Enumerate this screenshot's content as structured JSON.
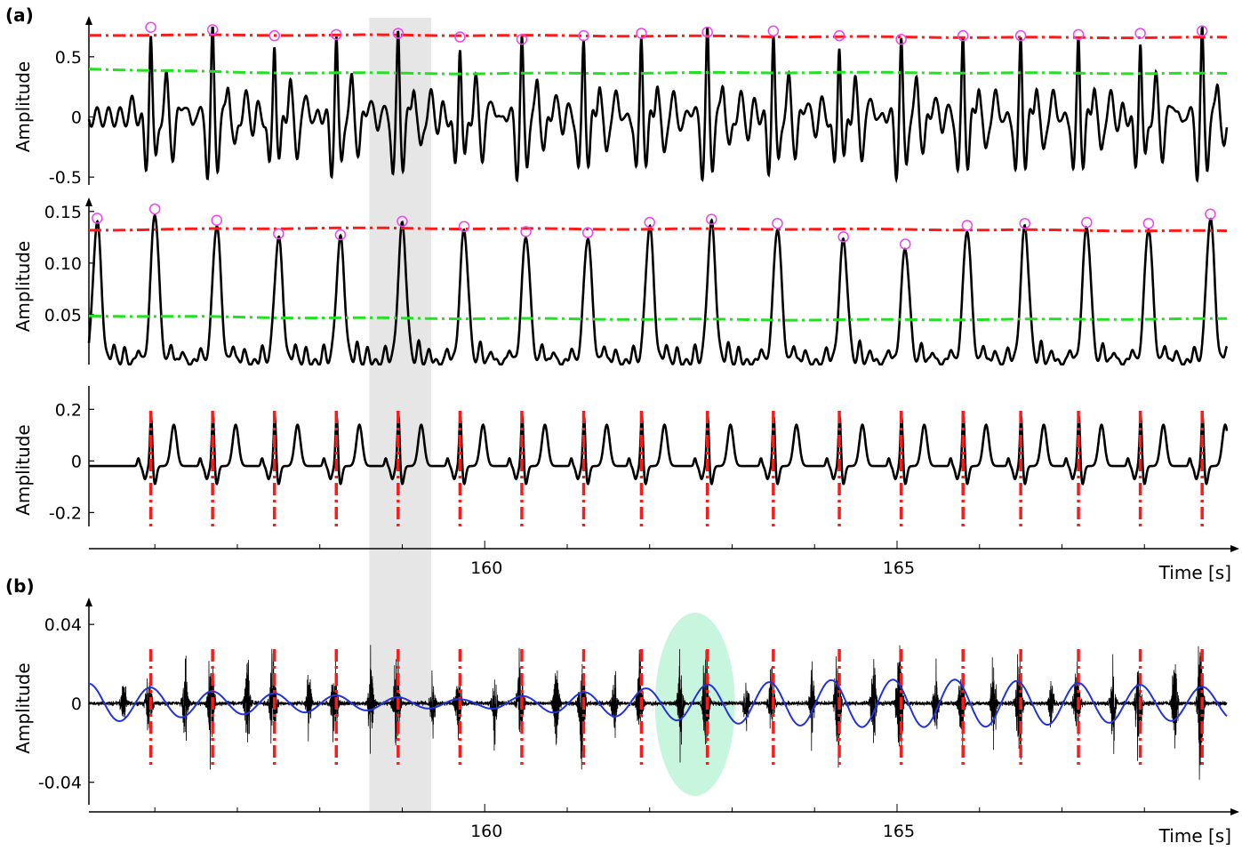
{
  "figure": {
    "panel_a_label": "(a)",
    "panel_b_label": "(b)"
  },
  "colors": {
    "signal": "#000000",
    "upper_threshold": "#ff1a1a",
    "lower_threshold": "#22e022",
    "peak_marker": "#ee44ee",
    "beat_marker": "#ff1a1a",
    "sinusoid": "#2233dd",
    "shaded_region": "#e6e6e6",
    "highlight_ellipse": "#c8f5de"
  },
  "chart_data": [
    {
      "type": "line",
      "panel": "a1",
      "ylabel": "Amplitude",
      "ylim": [
        -0.58,
        0.75
      ],
      "yticks": [
        0.5,
        0,
        -0.5
      ],
      "ytick_labels": [
        "0.5",
        "0",
        "-0.5"
      ],
      "xlim": [
        155.2,
        169.0
      ],
      "series": [
        {
          "role": "upper_threshold",
          "style": "dash-dot",
          "x": [
            155.2,
            159.0,
            163.0,
            166.5,
            169.0
          ],
          "y": [
            0.68,
            0.68,
            0.67,
            0.66,
            0.66
          ]
        },
        {
          "role": "lower_threshold",
          "style": "dash-dot",
          "x": [
            155.2,
            157.0,
            160.0,
            164.0,
            169.0
          ],
          "y": [
            0.4,
            0.37,
            0.36,
            0.37,
            0.36
          ]
        }
      ],
      "peaks": {
        "x": [
          155.95,
          156.7,
          157.45,
          158.2,
          158.95,
          159.7,
          160.45,
          161.2,
          161.9,
          162.7,
          163.5,
          164.3,
          165.05,
          165.8,
          166.5,
          167.2,
          167.95,
          168.7
        ],
        "y": [
          0.73,
          0.71,
          0.66,
          0.67,
          0.68,
          0.65,
          0.63,
          0.66,
          0.68,
          0.69,
          0.7,
          0.66,
          0.63,
          0.66,
          0.66,
          0.67,
          0.68,
          0.7
        ]
      }
    },
    {
      "type": "line",
      "panel": "a2",
      "ylabel": "Amplitude",
      "ylim": [
        0.0,
        0.155
      ],
      "yticks": [
        0.15,
        0.1,
        0.05
      ],
      "ytick_labels": [
        "0.15",
        "0.10",
        "0.05"
      ],
      "xlim": [
        155.2,
        169.0
      ],
      "series": [
        {
          "role": "upper_threshold",
          "style": "dash-dot",
          "x": [
            155.2,
            158.0,
            161.0,
            164.0,
            169.0
          ],
          "y": [
            0.132,
            0.134,
            0.133,
            0.133,
            0.131
          ]
        },
        {
          "role": "lower_threshold",
          "style": "dash-dot",
          "x": [
            155.2,
            158.0,
            161.0,
            164.0,
            169.0
          ],
          "y": [
            0.049,
            0.047,
            0.046,
            0.045,
            0.046
          ]
        }
      ],
      "peaks": {
        "x": [
          155.3,
          156.0,
          156.75,
          157.5,
          158.25,
          159.0,
          159.75,
          160.5,
          161.25,
          162.0,
          162.75,
          163.55,
          164.35,
          165.1,
          165.85,
          166.55,
          167.3,
          168.05,
          168.8
        ],
        "y": [
          0.14,
          0.149,
          0.138,
          0.125,
          0.124,
          0.137,
          0.132,
          0.127,
          0.126,
          0.136,
          0.139,
          0.135,
          0.122,
          0.115,
          0.133,
          0.135,
          0.136,
          0.135,
          0.144
        ]
      }
    },
    {
      "type": "line",
      "panel": "a3",
      "ylabel": "Amplitude",
      "xlabel": "Time [s]",
      "ylim": [
        -0.34,
        0.27
      ],
      "yticks": [
        0.2,
        0,
        -0.2
      ],
      "ytick_labels": [
        "0.2",
        "0",
        "-0.2"
      ],
      "xlim": [
        155.2,
        169.0
      ],
      "xticks": [
        160,
        165
      ],
      "xtick_labels": [
        "160",
        "165"
      ],
      "beat_markers_x": [
        155.95,
        156.7,
        157.45,
        158.2,
        158.95,
        159.7,
        160.45,
        161.2,
        161.9,
        162.7,
        163.5,
        164.3,
        165.05,
        165.8,
        166.5,
        167.2,
        167.95,
        168.7
      ]
    },
    {
      "type": "line",
      "panel": "b",
      "ylabel": "Amplitude",
      "xlabel": "Time [s]",
      "ylim": [
        -0.055,
        0.05
      ],
      "yticks": [
        0.04,
        0,
        -0.04
      ],
      "ytick_labels": [
        "0.04",
        "0",
        "-0.04"
      ],
      "xlim": [
        155.2,
        169.0
      ],
      "xticks": [
        160,
        165
      ],
      "xtick_labels": [
        "160",
        "165"
      ],
      "beat_markers_x": [
        155.95,
        156.7,
        157.45,
        158.2,
        158.95,
        159.7,
        160.45,
        161.2,
        161.9,
        162.7,
        163.5,
        164.3,
        165.05,
        165.8,
        166.5,
        167.2,
        167.95,
        168.7
      ],
      "sinusoid": {
        "role": "respiration",
        "period_s": 0.75,
        "amplitude": [
          0.01,
          0.006,
          0.004,
          0.002,
          0.006,
          0.01,
          0.012,
          0.012,
          0.01,
          0.008
        ]
      }
    }
  ],
  "shared": {
    "shaded_interval_s": [
      158.6,
      159.35
    ],
    "highlight_region_center_s": 162.55
  }
}
